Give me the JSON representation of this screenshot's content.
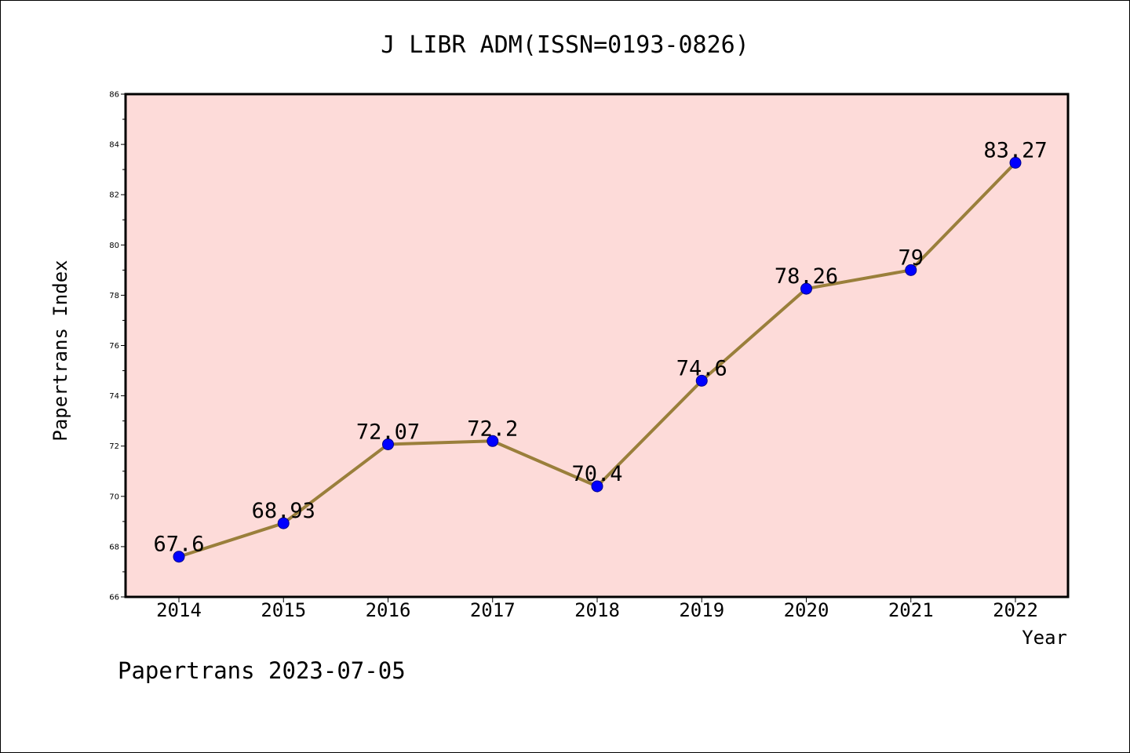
{
  "footer": {
    "text": "Papertrans 2023-07-05"
  },
  "colors": {
    "plot_background": "#fddbd9",
    "line": "#9a7f3b",
    "marker": "#0000ff",
    "marker_edge": "#00008b",
    "axis": "#000000"
  },
  "chart_data": {
    "type": "line",
    "title": "J LIBR ADM(ISSN=0193-0826)",
    "xlabel": "Year",
    "ylabel": "Papertrans Index",
    "categories": [
      "2014",
      "2015",
      "2016",
      "2017",
      "2018",
      "2019",
      "2020",
      "2021",
      "2022"
    ],
    "series": [
      {
        "values": [
          67.6,
          68.93,
          72.07,
          72.2,
          70.4,
          74.6,
          78.26,
          79,
          83.27
        ]
      }
    ],
    "data_labels": [
      "67.6",
      "68.93",
      "72.07",
      "72.2",
      "70.4",
      "74.6",
      "78.26",
      "79",
      "83.27"
    ],
    "ylim": [
      66,
      86
    ],
    "yticks": [
      "66",
      "68",
      "70",
      "72",
      "74",
      "76",
      "78",
      "80",
      "82",
      "84",
      "86"
    ],
    "grid": false,
    "legend": "none"
  }
}
